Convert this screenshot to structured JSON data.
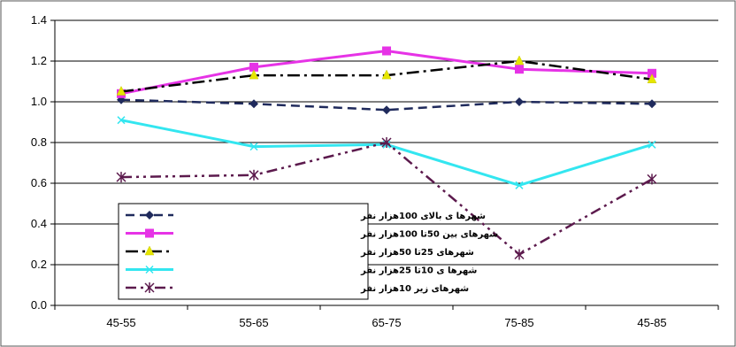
{
  "chart_data": {
    "type": "line",
    "categories": [
      "45-55",
      "55-65",
      "65-75",
      "75-85",
      "45-85"
    ],
    "ylim": [
      0,
      1.4
    ],
    "yticks": [
      "0.0",
      "0.2",
      "0.4",
      "0.6",
      "0.8",
      "1.0",
      "1.2",
      "1.4"
    ],
    "grid": true,
    "legend_position": "bottom-left",
    "series": [
      {
        "name": "شهرها ی بالای  100هزار نفر",
        "values": [
          1.01,
          0.99,
          0.96,
          1.0,
          0.99
        ],
        "color": "#1f2a5c",
        "dash": "dash",
        "marker": "diamond"
      },
      {
        "name": "شهرهای بین  50تا  100هزار نفر",
        "values": [
          1.04,
          1.17,
          1.25,
          1.16,
          1.14
        ],
        "color": "#e633e6",
        "dash": "solid",
        "marker": "square"
      },
      {
        "name": "شهرهای  25تا  50هزار نفر",
        "values": [
          1.05,
          1.13,
          1.13,
          1.2,
          1.11
        ],
        "color": "#000000",
        "dash": "dashdot",
        "marker": "triangle"
      },
      {
        "name": "شهرها ی 10تا  25هزار نفر",
        "values": [
          0.91,
          0.78,
          0.79,
          0.59,
          0.79
        ],
        "color": "#33e6f0",
        "dash": "solid",
        "marker": "x"
      },
      {
        "name": "شهرهای زیر  10هزار نفر",
        "values": [
          0.63,
          0.64,
          0.8,
          0.25,
          0.62
        ],
        "color": "#5c1a4d",
        "dash": "dashdotdot",
        "marker": "asterisk"
      }
    ]
  }
}
